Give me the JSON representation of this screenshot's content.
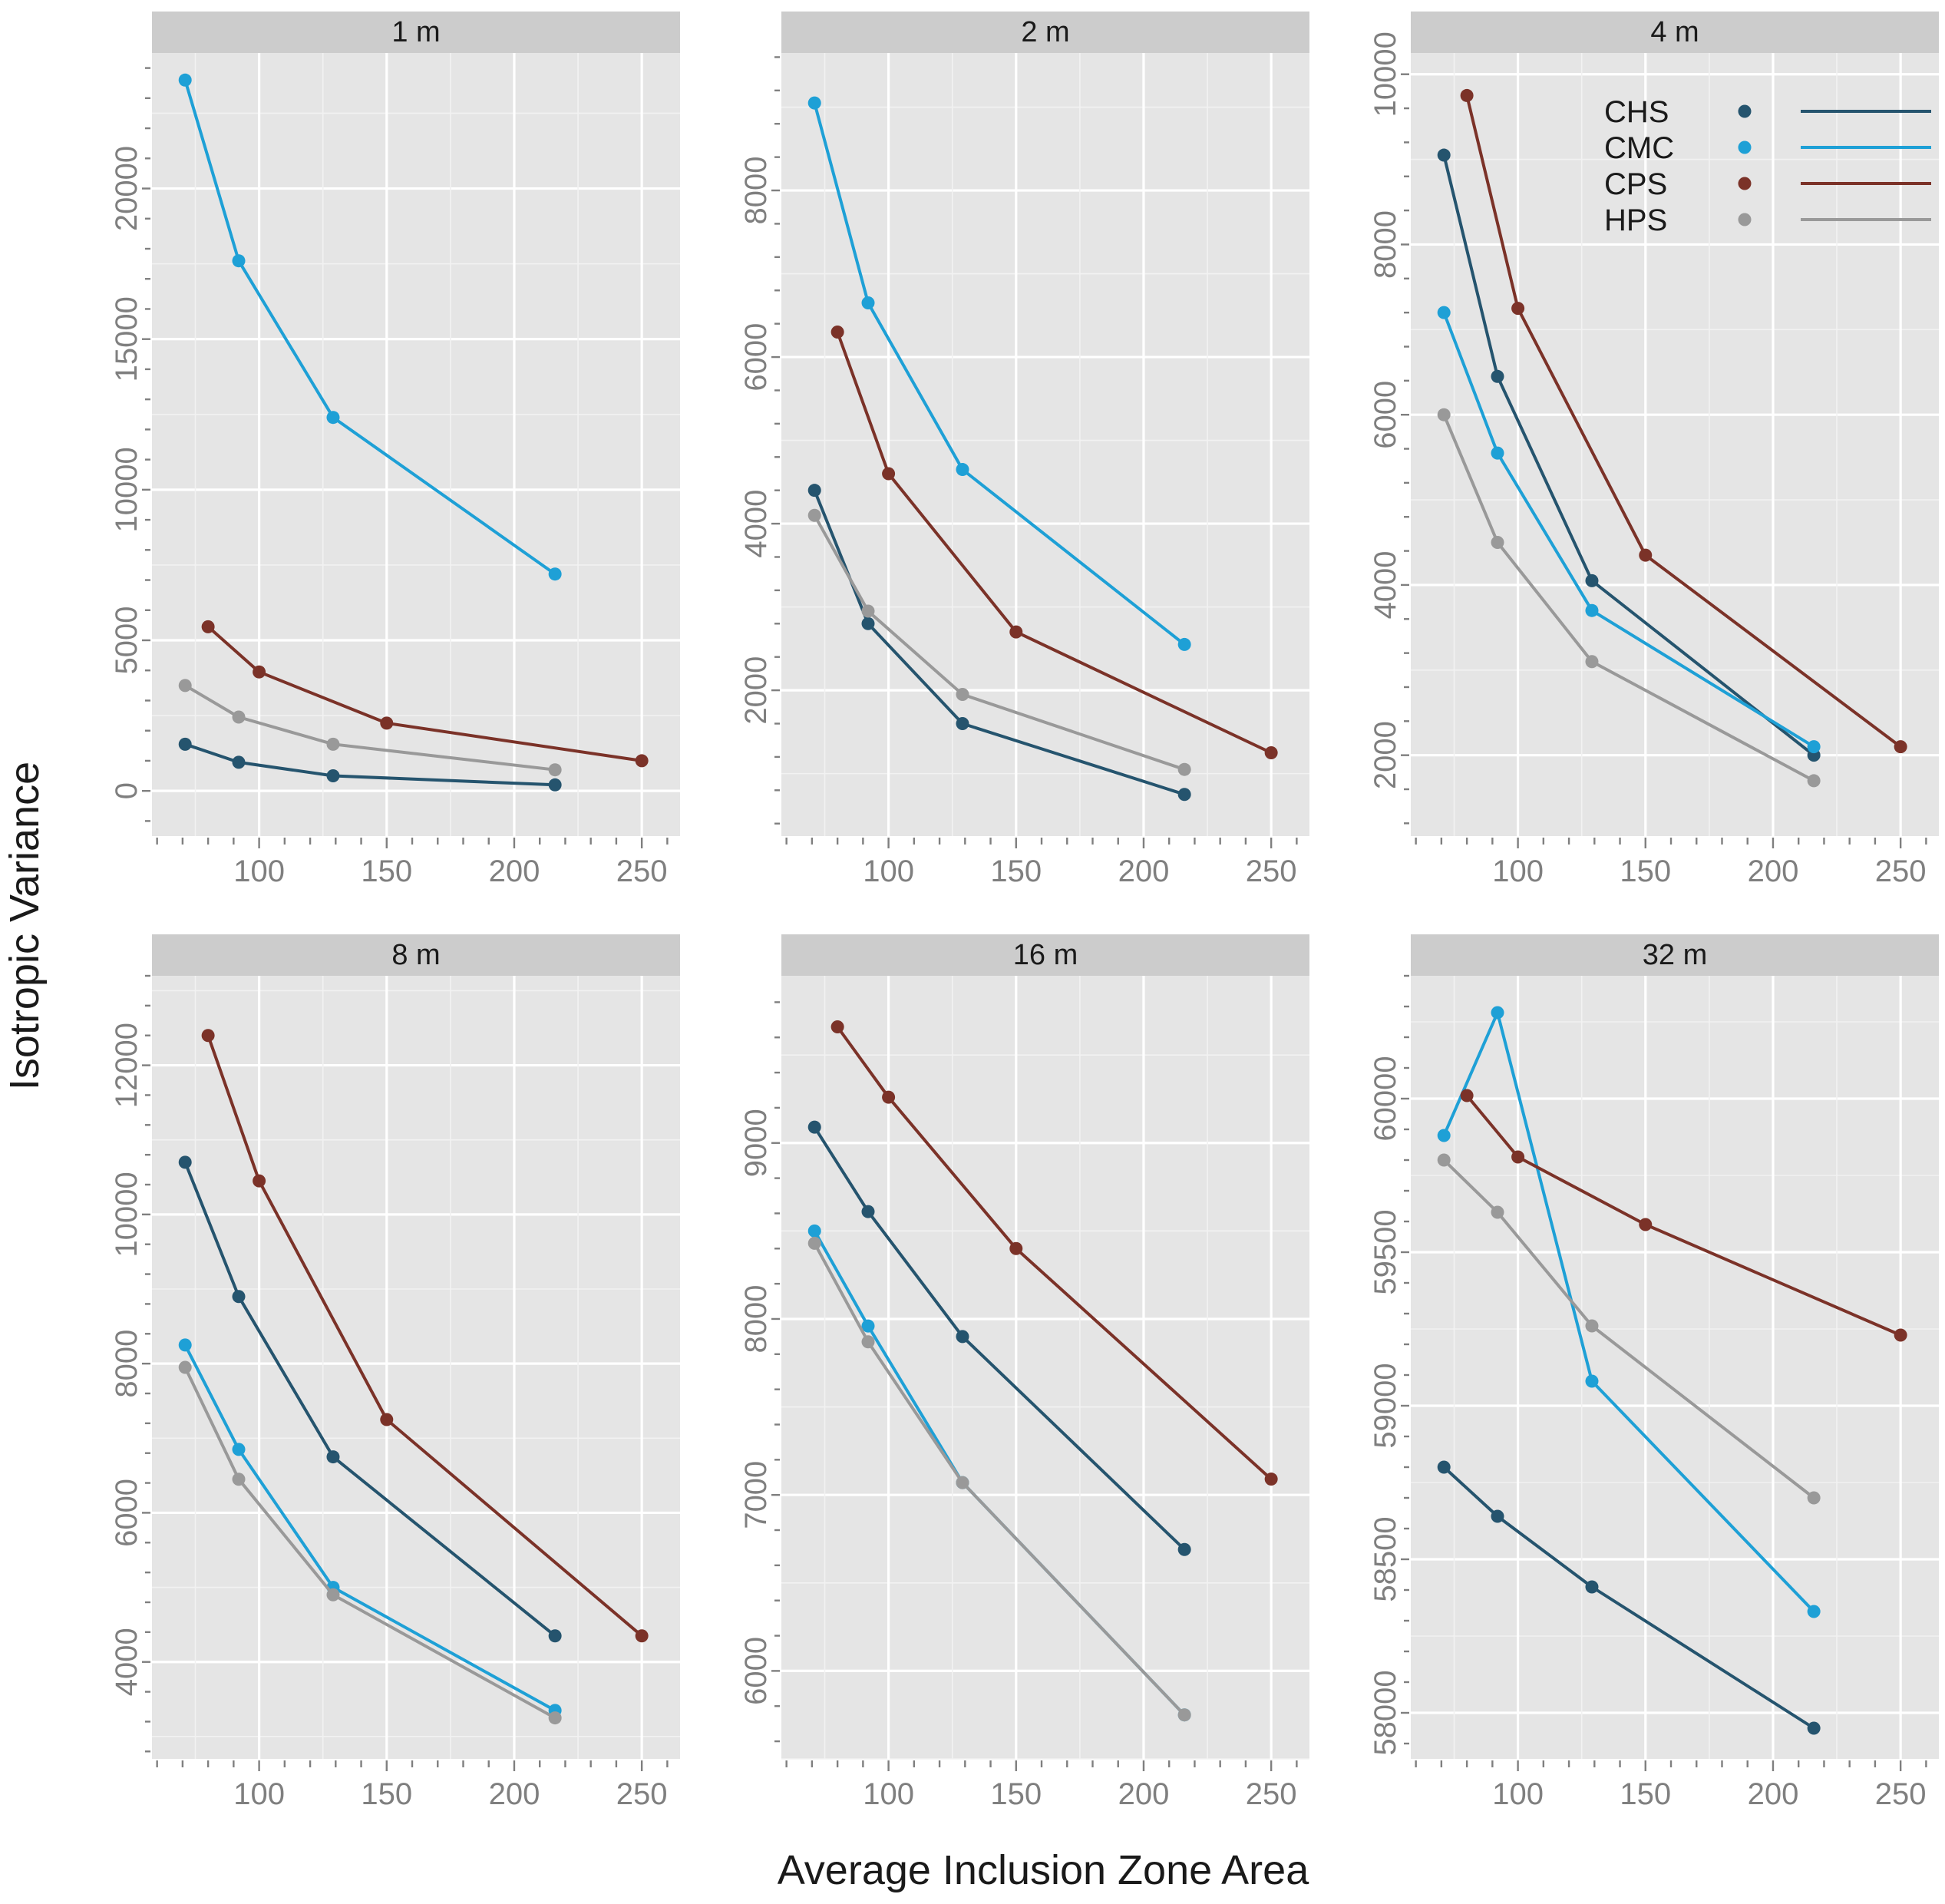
{
  "figure": {
    "ylabel": "Isotropic Variance",
    "xlabel": "Average Inclusion Zone Area"
  },
  "legend": {
    "position": "top-right of 4 m panel",
    "entries": [
      {
        "label": "CHS",
        "color": "#25546e"
      },
      {
        "label": "CMC",
        "color": "#1ea0d6"
      },
      {
        "label": "CPS",
        "color": "#7b3228"
      },
      {
        "label": "HPS",
        "color": "#999999"
      }
    ]
  },
  "chart_data": [
    {
      "type": "line",
      "title": "1 m",
      "xlim": [
        58,
        265
      ],
      "ylim": [
        -1500,
        24500
      ],
      "xticks": [
        100,
        150,
        200,
        250
      ],
      "yticks": [
        0,
        5000,
        10000,
        15000,
        20000
      ],
      "series": [
        {
          "name": "CHS",
          "color": "#25546e",
          "x": [
            71,
            92,
            129,
            216
          ],
          "y": [
            1550,
            950,
            500,
            200
          ]
        },
        {
          "name": "CMC",
          "color": "#1ea0d6",
          "x": [
            71,
            92,
            129,
            216
          ],
          "y": [
            23600,
            17600,
            12400,
            7200
          ]
        },
        {
          "name": "CPS",
          "color": "#7b3228",
          "x": [
            80,
            100,
            150,
            250
          ],
          "y": [
            5450,
            3950,
            2250,
            1000
          ]
        },
        {
          "name": "HPS",
          "color": "#999999",
          "x": [
            71,
            92,
            129,
            216
          ],
          "y": [
            3500,
            2450,
            1550,
            700
          ]
        }
      ]
    },
    {
      "type": "line",
      "title": "2 m",
      "xlim": [
        58,
        265
      ],
      "ylim": [
        250,
        9650
      ],
      "xticks": [
        100,
        150,
        200,
        250
      ],
      "yticks": [
        2000,
        4000,
        6000,
        8000
      ],
      "series": [
        {
          "name": "CHS",
          "color": "#25546e",
          "x": [
            71,
            92,
            129,
            216
          ],
          "y": [
            4400,
            2800,
            1600,
            750
          ]
        },
        {
          "name": "CMC",
          "color": "#1ea0d6",
          "x": [
            71,
            92,
            129,
            216
          ],
          "y": [
            9050,
            6650,
            4650,
            2550
          ]
        },
        {
          "name": "CPS",
          "color": "#7b3228",
          "x": [
            80,
            100,
            150,
            250
          ],
          "y": [
            6300,
            4600,
            2700,
            1250
          ]
        },
        {
          "name": "HPS",
          "color": "#999999",
          "x": [
            71,
            92,
            129,
            216
          ],
          "y": [
            4100,
            2950,
            1950,
            1050
          ]
        }
      ]
    },
    {
      "type": "line",
      "title": "4 m",
      "xlim": [
        58,
        265
      ],
      "ylim": [
        1050,
        10250
      ],
      "xticks": [
        100,
        150,
        200,
        250
      ],
      "yticks": [
        2000,
        4000,
        6000,
        8000,
        10000
      ],
      "series": [
        {
          "name": "CHS",
          "color": "#25546e",
          "x": [
            71,
            92,
            129,
            216
          ],
          "y": [
            9050,
            6450,
            4050,
            2000
          ]
        },
        {
          "name": "CMC",
          "color": "#1ea0d6",
          "x": [
            71,
            92,
            129,
            216
          ],
          "y": [
            7200,
            5550,
            3700,
            2100
          ]
        },
        {
          "name": "CPS",
          "color": "#7b3228",
          "x": [
            80,
            100,
            150,
            250
          ],
          "y": [
            9750,
            7250,
            4350,
            2100
          ]
        },
        {
          "name": "HPS",
          "color": "#999999",
          "x": [
            71,
            92,
            129,
            216
          ],
          "y": [
            6000,
            4500,
            3100,
            1700
          ]
        }
      ]
    },
    {
      "type": "line",
      "title": "8 m",
      "xlim": [
        58,
        265
      ],
      "ylim": [
        2700,
        13200
      ],
      "xticks": [
        100,
        150,
        200,
        250
      ],
      "yticks": [
        4000,
        6000,
        8000,
        10000,
        12000
      ],
      "series": [
        {
          "name": "CHS",
          "color": "#25546e",
          "x": [
            71,
            92,
            129,
            216
          ],
          "y": [
            10700,
            8900,
            6750,
            4350
          ]
        },
        {
          "name": "CMC",
          "color": "#1ea0d6",
          "x": [
            71,
            92,
            129,
            216
          ],
          "y": [
            8250,
            6850,
            5000,
            3350
          ]
        },
        {
          "name": "CPS",
          "color": "#7b3228",
          "x": [
            80,
            100,
            150,
            250
          ],
          "y": [
            12400,
            10450,
            7250,
            4350
          ]
        },
        {
          "name": "HPS",
          "color": "#999999",
          "x": [
            71,
            92,
            129,
            216
          ],
          "y": [
            7950,
            6450,
            4900,
            3250
          ]
        }
      ]
    },
    {
      "type": "line",
      "title": "16 m",
      "xlim": [
        58,
        265
      ],
      "ylim": [
        5500,
        9950
      ],
      "xticks": [
        100,
        150,
        200,
        250
      ],
      "yticks": [
        6000,
        7000,
        8000,
        9000
      ],
      "series": [
        {
          "name": "CHS",
          "color": "#25546e",
          "x": [
            71,
            92,
            129,
            216
          ],
          "y": [
            9090,
            8610,
            7900,
            6690
          ]
        },
        {
          "name": "CMC",
          "color": "#1ea0d6",
          "x": [
            71,
            92,
            129,
            216
          ],
          "y": [
            8500,
            7960,
            7070,
            5750
          ]
        },
        {
          "name": "CPS",
          "color": "#7b3228",
          "x": [
            80,
            100,
            150,
            250
          ],
          "y": [
            9660,
            9260,
            8400,
            7090
          ]
        },
        {
          "name": "HPS",
          "color": "#999999",
          "x": [
            71,
            92,
            129,
            216
          ],
          "y": [
            8430,
            7870,
            7070,
            5750
          ]
        }
      ]
    },
    {
      "type": "line",
      "title": "32 m",
      "xlim": [
        58,
        265
      ],
      "ylim": [
        57850,
        60400
      ],
      "xticks": [
        100,
        150,
        200,
        250
      ],
      "yticks": [
        58000,
        58500,
        59000,
        59500,
        60000
      ],
      "series": [
        {
          "name": "CHS",
          "color": "#25546e",
          "x": [
            71,
            92,
            129,
            216
          ],
          "y": [
            58800,
            58640,
            58410,
            57950
          ]
        },
        {
          "name": "CMC",
          "color": "#1ea0d6",
          "x": [
            71,
            92,
            129,
            216
          ],
          "y": [
            59880,
            60280,
            59080,
            58330
          ]
        },
        {
          "name": "CPS",
          "color": "#7b3228",
          "x": [
            80,
            100,
            150,
            250
          ],
          "y": [
            60010,
            59810,
            59590,
            59230
          ]
        },
        {
          "name": "HPS",
          "color": "#999999",
          "x": [
            71,
            92,
            129,
            216
          ],
          "y": [
            59800,
            59630,
            59260,
            58700
          ]
        }
      ]
    }
  ]
}
